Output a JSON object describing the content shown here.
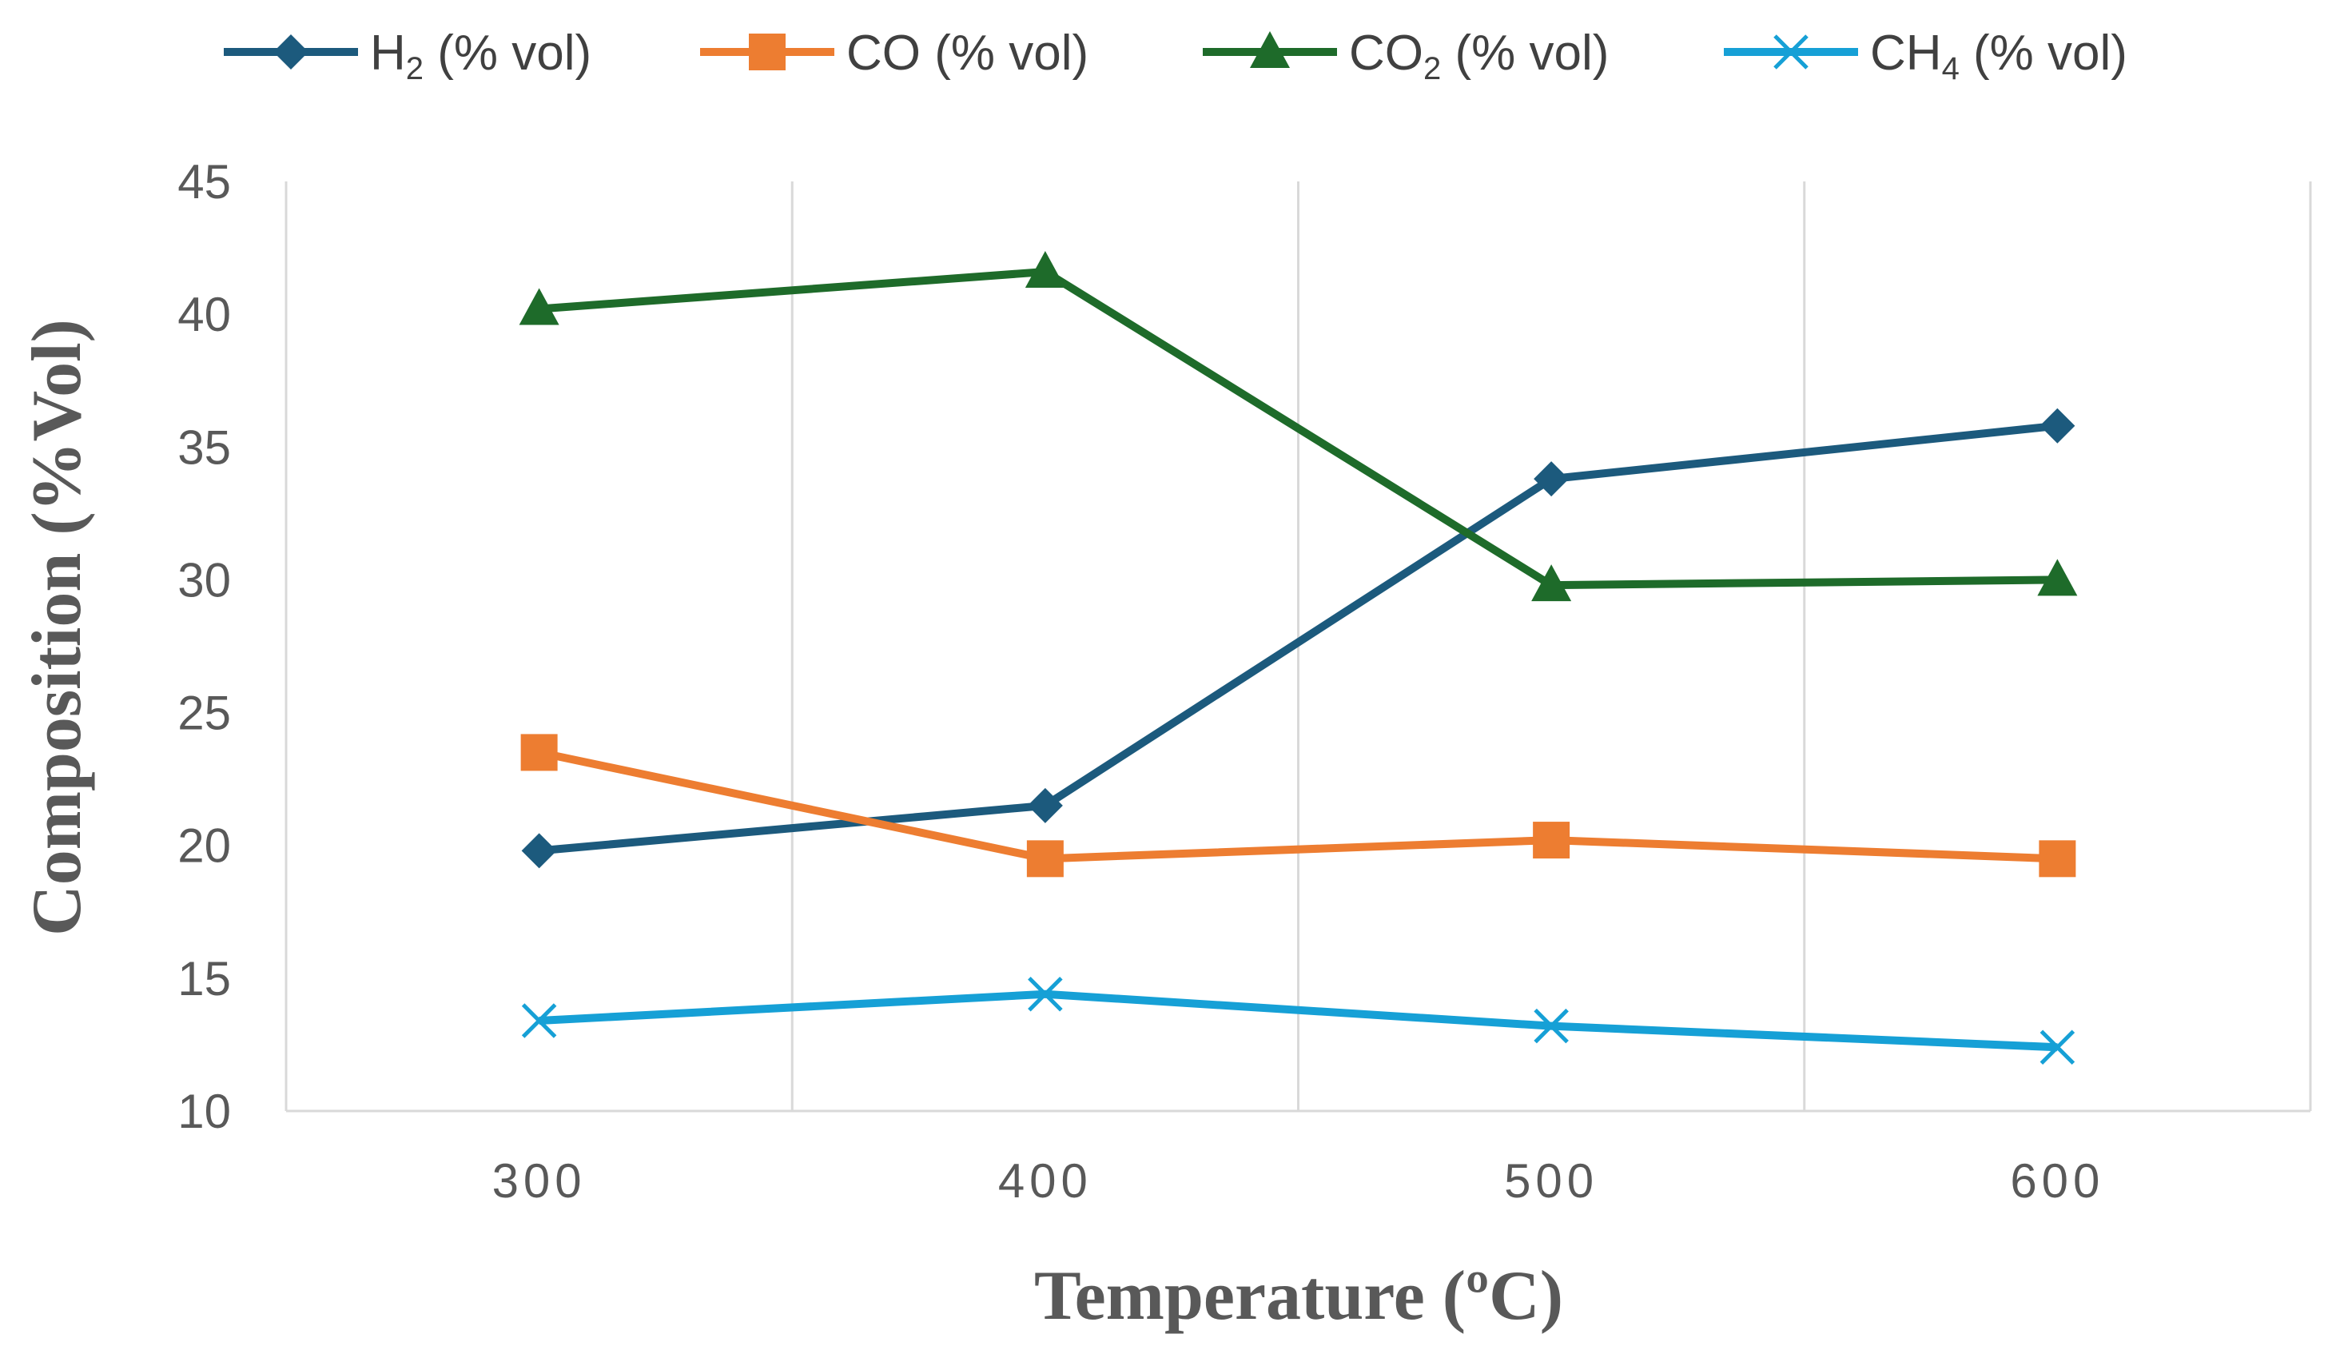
{
  "chart_data": {
    "type": "line",
    "title": "",
    "xlabel": "Temperature (ºC)",
    "ylabel": "Composition (%Vol)",
    "categories": [
      "300",
      "400",
      "500",
      "600"
    ],
    "ylim": [
      10,
      45
    ],
    "yticks": [
      "10",
      "15",
      "20",
      "25",
      "30",
      "35",
      "40",
      "45"
    ],
    "grid": "vertical",
    "legend_position": "top",
    "series": [
      {
        "name": "H2 (% vol)",
        "label_main": "H",
        "label_sub": "2",
        "label_rest": " (% vol)",
        "color": "#1c5a7d",
        "marker": "diamond",
        "values": [
          19.8,
          21.5,
          33.8,
          35.8
        ]
      },
      {
        "name": "CO (% vol)",
        "label_main": "CO",
        "label_sub": "",
        "label_rest": " (% vol)",
        "color": "#ed7d31",
        "marker": "square",
        "values": [
          23.5,
          19.5,
          20.2,
          19.5
        ]
      },
      {
        "name": "CO2 (% vol)",
        "label_main": "CO",
        "label_sub": "2",
        "label_rest": " (% vol)",
        "color": "#1e6b2a",
        "marker": "triangle",
        "values": [
          40.2,
          41.6,
          29.8,
          30.0
        ]
      },
      {
        "name": "CH4 (% vol)",
        "label_main": "CH",
        "label_sub": "4",
        "label_rest": " (% vol)",
        "color": "#16a0d6",
        "marker": "x",
        "values": [
          13.4,
          14.4,
          13.2,
          12.4
        ]
      }
    ]
  }
}
